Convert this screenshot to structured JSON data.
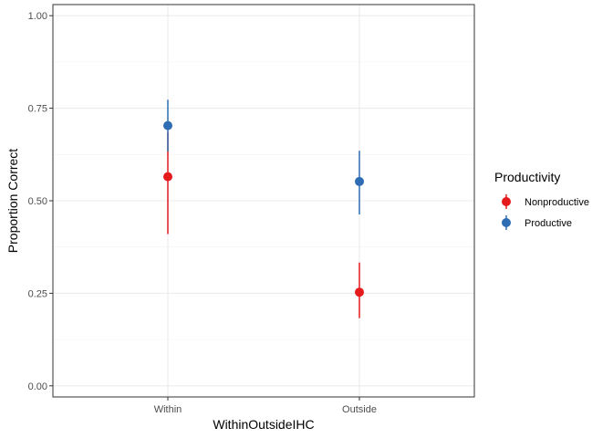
{
  "chart_data": {
    "type": "scatter",
    "subtype": "pointrange",
    "xlabel": "WithinOutsideIHC",
    "ylabel": "Proportion Correct",
    "categories": [
      "Within",
      "Outside"
    ],
    "ylim": [
      -0.03,
      1.03
    ],
    "yticks": [
      0.0,
      0.25,
      0.5,
      0.75,
      1.0
    ],
    "ytick_labels": [
      "0.00",
      "0.25",
      "0.50",
      "0.75",
      "1.00"
    ],
    "grid": true,
    "legend": {
      "title": "Productivity",
      "position": "right"
    },
    "series": [
      {
        "name": "Nonproductive",
        "color": "#E41A1C",
        "points": [
          {
            "x": "Within",
            "y": 0.565,
            "ymin": 0.41,
            "ymax": 0.685
          },
          {
            "x": "Outside",
            "y": 0.253,
            "ymin": 0.183,
            "ymax": 0.333
          }
        ]
      },
      {
        "name": "Productive",
        "color": "#2E6DB4",
        "points": [
          {
            "x": "Within",
            "y": 0.703,
            "ymin": 0.633,
            "ymax": 0.773
          },
          {
            "x": "Outside",
            "y": 0.552,
            "ymin": 0.463,
            "ymax": 0.635
          }
        ]
      }
    ]
  }
}
